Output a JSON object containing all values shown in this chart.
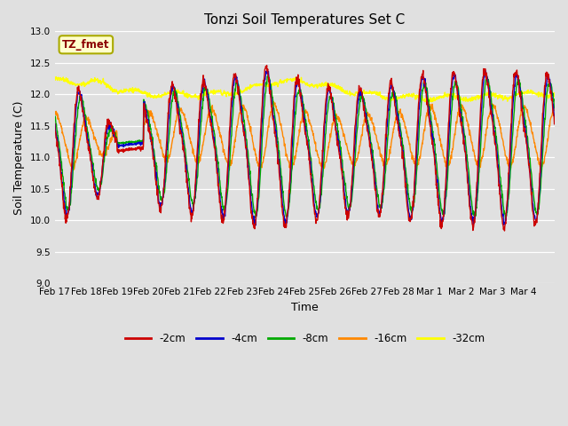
{
  "title": "Tonzi Soil Temperatures Set C",
  "xlabel": "Time",
  "ylabel": "Soil Temperature (C)",
  "ylim": [
    9.0,
    13.0
  ],
  "yticks": [
    9.0,
    9.5,
    10.0,
    10.5,
    11.0,
    11.5,
    12.0,
    12.5,
    13.0
  ],
  "annotation_text": "TZ_fmet",
  "annotation_color": "#8B0000",
  "annotation_bg": "#FFFFCC",
  "annotation_border": "#AAAA00",
  "colors": {
    "-2cm": "#CC0000",
    "-4cm": "#0000CC",
    "-8cm": "#00AA00",
    "-16cm": "#FF8800",
    "-32cm": "#FFFF00"
  },
  "n_days": 16,
  "xtick_labels": [
    "Feb 17",
    "Feb 18",
    "Feb 19",
    "Feb 20",
    "Feb 21",
    "Feb 22",
    "Feb 23",
    "Feb 24",
    "Feb 25",
    "Feb 26",
    "Feb 27",
    "Feb 28",
    "Mar 1",
    "Mar 2",
    "Mar 3",
    "Mar 4"
  ],
  "linewidth": 1.0,
  "figsize": [
    6.4,
    4.8
  ],
  "dpi": 100
}
